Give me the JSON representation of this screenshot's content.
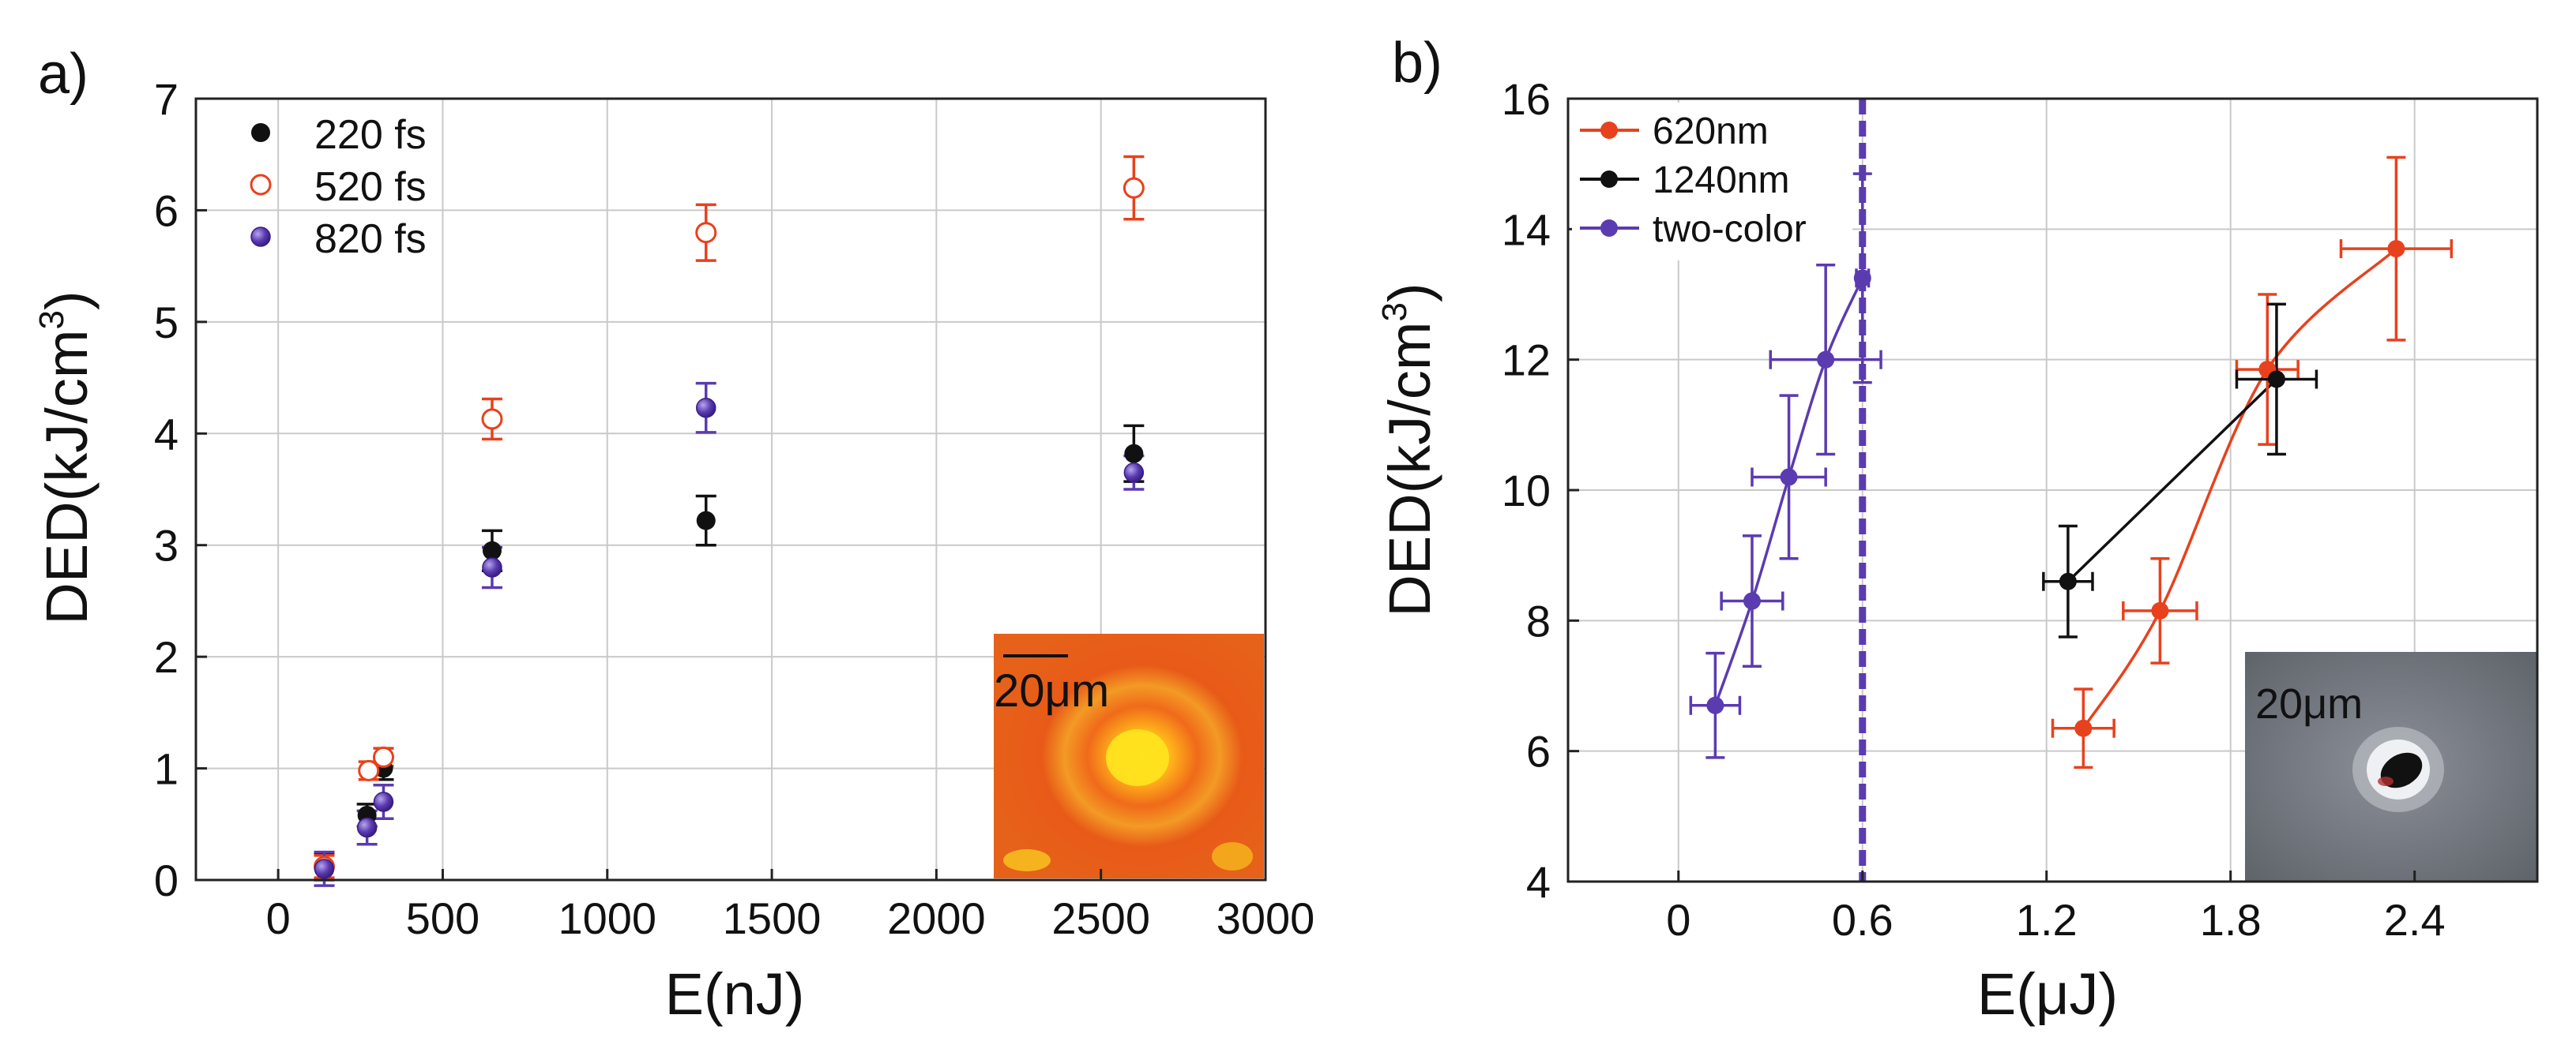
{
  "chart_data": [
    {
      "panel_label": "a)",
      "type": "scatter",
      "xlabel": "E(nJ)",
      "ylabel_main": "DED(kJ/cm",
      "ylabel_sup": "3",
      "ylabel_close": ")",
      "xlim": [
        -250,
        3000
      ],
      "ylim": [
        0,
        7
      ],
      "xticks": [
        0,
        500,
        1000,
        1500,
        2000,
        2500,
        3000
      ],
      "xtick_labels": [
        "0",
        "500",
        "1000",
        "1500",
        "2000",
        "2500",
        "3000"
      ],
      "yticks": [
        0,
        1,
        2,
        3,
        4,
        5,
        6,
        7
      ],
      "ytick_labels": [
        "0",
        "1",
        "2",
        "3",
        "4",
        "5",
        "6",
        "7"
      ],
      "grid": true,
      "legend_position": "top-left",
      "series": [
        {
          "name": "220 fs",
          "marker": "filled-circle",
          "color": "#111111",
          "x": [
            140,
            270,
            320,
            650,
            1300,
            2600
          ],
          "y": [
            0.12,
            0.58,
            1.0,
            2.95,
            3.22,
            3.82
          ],
          "yerr": [
            0.12,
            0.1,
            0.1,
            0.18,
            0.22,
            0.25
          ]
        },
        {
          "name": "520 fs",
          "marker": "open-circle",
          "color": "#e8411d",
          "x": [
            140,
            275,
            320,
            650,
            1300,
            2600
          ],
          "y": [
            0.12,
            0.98,
            1.1,
            4.13,
            5.8,
            6.2
          ],
          "yerr": [
            0.1,
            0.08,
            0.08,
            0.18,
            0.25,
            0.28
          ]
        },
        {
          "name": "820 fs",
          "marker": "shaded-circle",
          "color": "#5b3bb0",
          "x": [
            140,
            270,
            320,
            650,
            1300,
            2600
          ],
          "y": [
            0.1,
            0.47,
            0.7,
            2.8,
            4.23,
            3.65
          ],
          "yerr": [
            0.15,
            0.15,
            0.15,
            0.18,
            0.22,
            0.15
          ]
        }
      ],
      "inset": {
        "scale_label": "20μm",
        "colormap": "heat"
      }
    },
    {
      "panel_label": "b)",
      "type": "line",
      "xlabel": "E(μJ)",
      "ylabel_main": "DED(kJ/cm",
      "ylabel_sup": "3",
      "ylabel_close": ")",
      "xlim": [
        -0.36,
        2.8
      ],
      "ylim": [
        4,
        16
      ],
      "xticks": [
        0,
        0.6,
        1.2,
        1.8,
        2.4
      ],
      "xtick_labels": [
        "0",
        "0.6",
        "1.2",
        "1.8",
        "2.4"
      ],
      "yticks": [
        4,
        6,
        8,
        10,
        12,
        14,
        16
      ],
      "ytick_labels": [
        "4",
        "6",
        "8",
        "10",
        "12",
        "14",
        "16"
      ],
      "grid": true,
      "legend_position": "top-left",
      "threshold_line_x": 0.6,
      "series": [
        {
          "name": "620nm",
          "color": "#e8411d",
          "x": [
            1.32,
            1.57,
            1.92,
            2.34
          ],
          "y": [
            6.35,
            8.15,
            11.85,
            13.7
          ],
          "xerr": [
            0.1,
            0.12,
            0.1,
            0.18
          ],
          "yerr": [
            0.6,
            0.8,
            1.15,
            1.4
          ]
        },
        {
          "name": "1240nm",
          "color": "#111111",
          "x": [
            1.27,
            1.95
          ],
          "y": [
            8.6,
            11.7
          ],
          "xerr": [
            0.08,
            0.13
          ],
          "yerr": [
            0.85,
            1.15
          ]
        },
        {
          "name": "two-color",
          "color": "#5b3bb0",
          "x": [
            0.12,
            0.24,
            0.36,
            0.48,
            0.6
          ],
          "y": [
            6.7,
            8.3,
            10.2,
            12.0,
            13.25
          ],
          "xerr": [
            0.08,
            0.1,
            0.12,
            0.18,
            0.02
          ],
          "yerr": [
            0.8,
            1.0,
            1.25,
            1.45,
            1.6
          ]
        }
      ],
      "inset": {
        "scale_label": "20μm",
        "colormap": "grayscale"
      }
    }
  ]
}
